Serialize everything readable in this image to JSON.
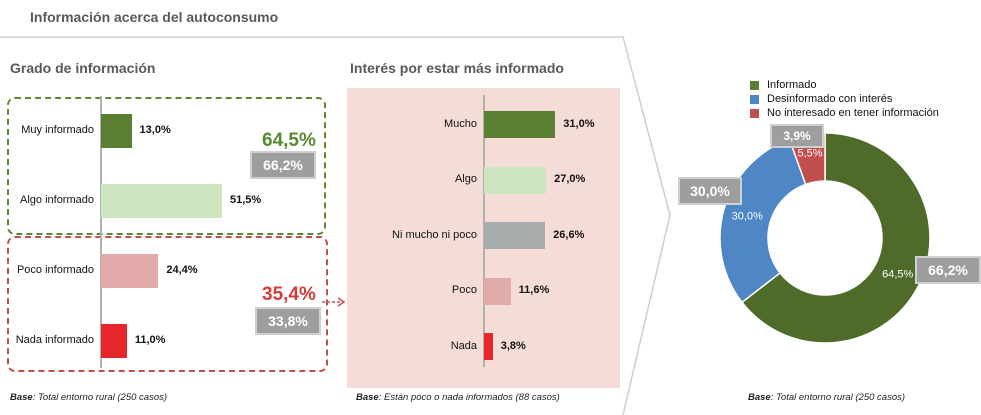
{
  "title": "Información acerca del autoconsumo",
  "colors": {
    "dark_green": "#5a7f32",
    "light_green": "#cde6bf",
    "light_pink": "#e2aaa8",
    "red": "#e5262a",
    "grey": "#a8acac",
    "blue": "#4f86c6",
    "pie_red": "#c0504d",
    "panel_pink": "#f6dcd6",
    "badge_grey": "#9e9e9e"
  },
  "left": {
    "title": "Grado de información",
    "base_label": "Base",
    "base_text": ": Total entorno rural (250 casos)",
    "group_informed": {
      "pct": "64,5%",
      "prev": "66,2%"
    },
    "group_uninformed": {
      "pct": "35,4%",
      "prev": "33,8%"
    }
  },
  "middle": {
    "title": "Interés por estar más informado",
    "base_label": "Base",
    "base_text": ": Están poco o nada informados (88 casos)"
  },
  "right": {
    "base_label": "Base",
    "base_text": ": Total entorno rural (250 casos)",
    "badges": {
      "blue_prev": "30,0%",
      "red_prev": "3,9%",
      "green_prev": "66,2%"
    }
  },
  "chart_data": [
    {
      "type": "bar",
      "orientation": "horizontal",
      "title": "Grado de información",
      "categories": [
        "Muy informado",
        "Algo informado",
        "Poco informado",
        "Nada informado"
      ],
      "values": [
        13.0,
        51.5,
        24.4,
        11.0
      ],
      "value_labels": [
        "13,0%",
        "51,5%",
        "24,4%",
        "11,0%"
      ],
      "colors": [
        "#5a7f32",
        "#cde6bf",
        "#e2aaa8",
        "#e5262a"
      ]
    },
    {
      "type": "bar",
      "orientation": "horizontal",
      "title": "Interés por estar más informado",
      "categories": [
        "Mucho",
        "Algo",
        "Ni mucho ni poco",
        "Poco",
        "Nada"
      ],
      "values": [
        31.0,
        27.0,
        26.6,
        11.6,
        3.8
      ],
      "value_labels": [
        "31,0%",
        "27,0%",
        "26,6%",
        "11,6%",
        "3,8%"
      ],
      "colors": [
        "#5a7f32",
        "#cde6bf",
        "#a8acac",
        "#e2aaa8",
        "#e5262a"
      ]
    },
    {
      "type": "pie",
      "donut": true,
      "legend_position": "top",
      "categories": [
        "Informado",
        "Desinformado con interés",
        "No interesado en tener información"
      ],
      "values": [
        64.5,
        30.0,
        5.5
      ],
      "value_labels": [
        "64,5%",
        "30,0%",
        "5,5%"
      ],
      "colors": [
        "#4e6b2a",
        "#4f86c6",
        "#c0504d"
      ]
    }
  ]
}
